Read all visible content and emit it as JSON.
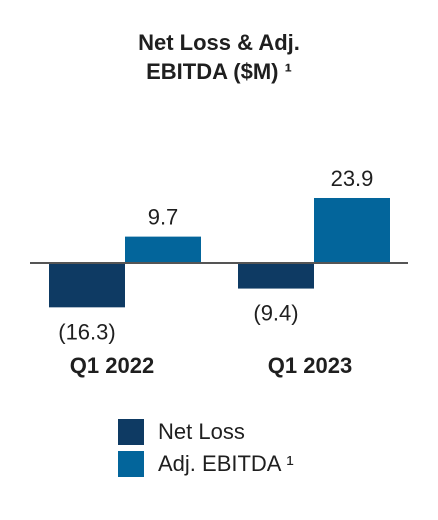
{
  "title_line1": "Net Loss & Adj.",
  "title_line2": "EBITDA ($M) ¹",
  "colors": {
    "net_loss": "#0e3a63",
    "adj_ebitda": "#03659b",
    "axis": "#555555",
    "text": "#1f1f1f"
  },
  "chart_data": {
    "type": "bar",
    "title": "Net Loss & Adj. EBITDA ($M) ¹",
    "categories": [
      "Q1 2022",
      "Q1 2023"
    ],
    "series": [
      {
        "name": "Net Loss",
        "values": [
          -16.3,
          -9.4
        ],
        "labels": [
          "(16.3)",
          "(9.4)"
        ]
      },
      {
        "name": "Adj. EBITDA ¹",
        "values": [
          9.7,
          23.9
        ],
        "labels": [
          "9.7",
          "23.9"
        ]
      }
    ],
    "legend_position": "bottom"
  }
}
